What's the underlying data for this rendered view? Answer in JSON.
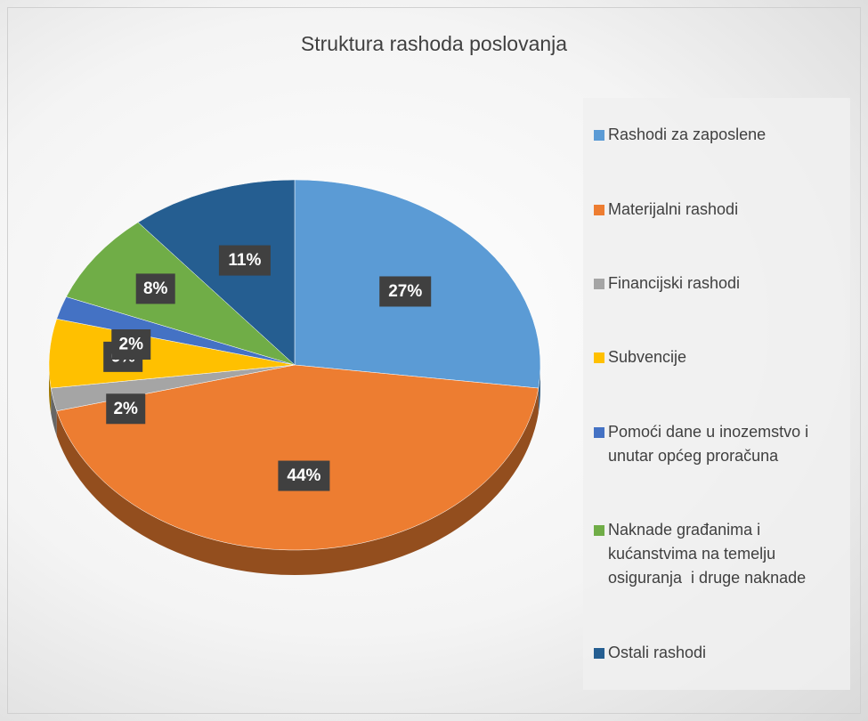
{
  "chart_data": {
    "type": "pie",
    "title": "Struktura rashoda poslovanja",
    "categories": [
      "Rashodi za zaposlene",
      "Materijalni rashodi",
      "Financijski rashodi",
      "Subvencije",
      "Pomoći dane u inozemstvo i unutar općeg proračuna",
      "Naknade građanima i kućanstvima na temelju osiguranja  i druge naknade",
      "Ostali rashodi"
    ],
    "values": [
      27,
      44,
      2,
      6,
      2,
      8,
      11
    ],
    "value_labels": [
      "27%",
      "44%",
      "2%",
      "6%",
      "2%",
      "8%",
      "11%"
    ],
    "colors": [
      "#5b9bd5",
      "#ed7d31",
      "#a5a5a5",
      "#ffc000",
      "#4472c4",
      "#70ad47",
      "#255e91"
    ],
    "legend": "right"
  }
}
